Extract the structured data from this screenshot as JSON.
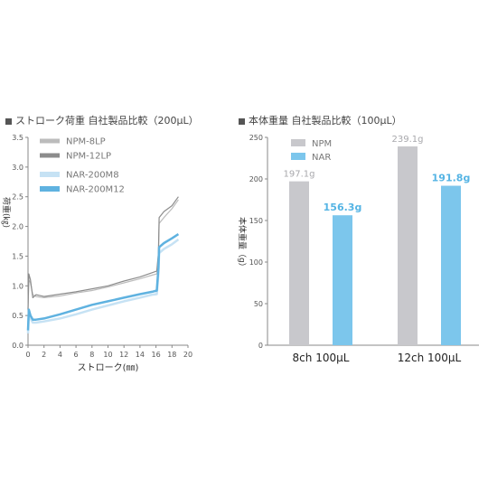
{
  "chart_data": [
    {
      "type": "line",
      "title": "ストローク荷重 自社製品比較（200μL）",
      "xlabel": "ストローク(㎜)",
      "ylabel": "荷重(㎏)",
      "xlim": [
        0,
        20
      ],
      "ylim": [
        0,
        3.5
      ],
      "xticks": [
        "0",
        "2",
        "4",
        "6",
        "8",
        "10",
        "12",
        "14",
        "16",
        "18",
        "20"
      ],
      "yticks": [
        "0.0",
        "0.5",
        "1.0",
        "1.5",
        "2.0",
        "2.5",
        "3.0",
        "3.5"
      ],
      "legend_position": "top-left",
      "series": [
        {
          "name": "NPM-8LP",
          "color": "#bcbcbc",
          "x": [
            0,
            0.1,
            0.3,
            0.6,
            1,
            2,
            4,
            6,
            8,
            10,
            12,
            14,
            15.5,
            16.1,
            16.3,
            16.4,
            17,
            18,
            18.8
          ],
          "y": [
            0.6,
            1.1,
            1.05,
            0.85,
            0.82,
            0.8,
            0.83,
            0.88,
            0.92,
            0.98,
            1.05,
            1.12,
            1.18,
            1.2,
            1.5,
            2.05,
            2.15,
            2.3,
            2.45
          ]
        },
        {
          "name": "NPM-12LP",
          "color": "#8c8c8c",
          "x": [
            0,
            0.1,
            0.3,
            0.6,
            1,
            2,
            4,
            6,
            8,
            10,
            12,
            14,
            15.5,
            16.1,
            16.3,
            16.4,
            17,
            18,
            18.8
          ],
          "y": [
            0.6,
            1.2,
            1.1,
            0.8,
            0.85,
            0.82,
            0.86,
            0.9,
            0.95,
            1.0,
            1.08,
            1.15,
            1.22,
            1.25,
            1.55,
            2.15,
            2.25,
            2.35,
            2.5
          ]
        },
        {
          "name": "NAR-200M8",
          "color": "#c6e2f4",
          "x": [
            0,
            0.1,
            0.3,
            0.6,
            1,
            2,
            4,
            6,
            8,
            10,
            12,
            14,
            15.5,
            16.1,
            16.3,
            16.4,
            17,
            18,
            18.8
          ],
          "y": [
            0.2,
            0.55,
            0.45,
            0.38,
            0.38,
            0.4,
            0.45,
            0.52,
            0.6,
            0.67,
            0.74,
            0.8,
            0.85,
            0.86,
            1.2,
            1.55,
            1.62,
            1.7,
            1.78
          ]
        },
        {
          "name": "NAR-200M12",
          "color": "#5fb2e0",
          "x": [
            0,
            0.1,
            0.3,
            0.6,
            1,
            2,
            4,
            6,
            8,
            10,
            12,
            14,
            15.5,
            16.1,
            16.3,
            16.4,
            17,
            18,
            18.8
          ],
          "y": [
            0.25,
            0.6,
            0.5,
            0.43,
            0.43,
            0.45,
            0.52,
            0.6,
            0.68,
            0.74,
            0.8,
            0.86,
            0.9,
            0.92,
            1.3,
            1.65,
            1.72,
            1.8,
            1.87
          ]
        }
      ]
    },
    {
      "type": "bar",
      "title": "本体重量 自社製品比較（100μL）",
      "ylabel": "本体重量（g）",
      "ylim": [
        0,
        250
      ],
      "yticks": [
        "0",
        "50",
        "100",
        "150",
        "200",
        "250"
      ],
      "categories": [
        "8ch 100μL",
        "12ch 100μL"
      ],
      "legend_position": "top-left",
      "series": [
        {
          "name": "NPM",
          "color": "#c8c8cc",
          "values": [
            197.1,
            239.1
          ],
          "labels": [
            "197.1g",
            "239.1g"
          ],
          "label_color": "#a8a8ac"
        },
        {
          "name": "NAR",
          "color": "#7cc6ec",
          "values": [
            156.3,
            191.8
          ],
          "labels": [
            "156.3g",
            "191.8g"
          ],
          "label_color": "#55b4e4"
        }
      ]
    }
  ]
}
